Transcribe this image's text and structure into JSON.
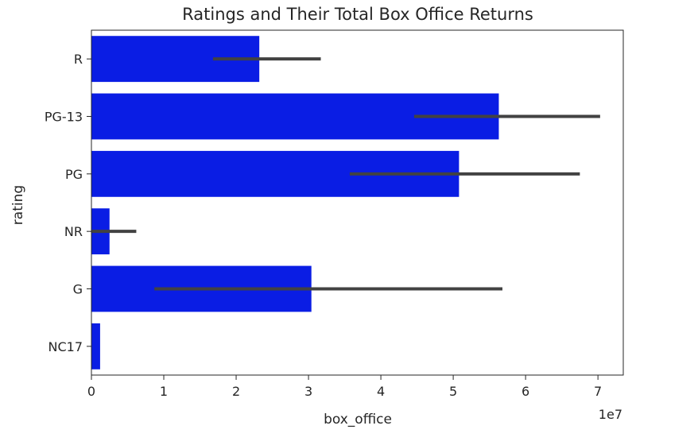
{
  "chart_data": {
    "type": "bar",
    "orientation": "horizontal",
    "title": "Ratings and Their Total Box Office Returns",
    "xlabel": "box_office",
    "ylabel": "rating",
    "x_offset_label": "1e7",
    "x_scale": 10000000,
    "xlim": [
      0,
      7.35
    ],
    "x_ticks": [
      0,
      1,
      2,
      3,
      4,
      5,
      6,
      7
    ],
    "x_tick_labels": [
      "0",
      "1",
      "2",
      "3",
      "4",
      "5",
      "6",
      "7"
    ],
    "categories": [
      "R",
      "PG-13",
      "PG",
      "NR",
      "G",
      "NC17"
    ],
    "values": [
      2.32,
      5.63,
      5.08,
      0.25,
      3.04,
      0.12
    ],
    "error_low": [
      1.68,
      4.46,
      3.57,
      0.0,
      0.87,
      null
    ],
    "error_high": [
      3.17,
      7.03,
      6.75,
      0.62,
      5.68,
      null
    ],
    "bar_color": "#0a1de4",
    "error_color": "#424242",
    "grid": false,
    "legend": "none"
  }
}
